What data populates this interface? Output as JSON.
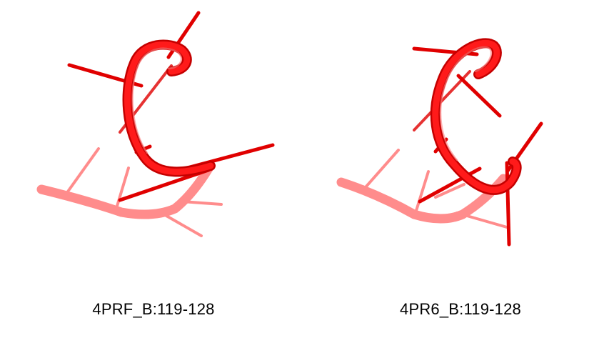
{
  "structures": [
    {
      "label": "4PRF_B:119-128",
      "color": "#ff0000"
    },
    {
      "label": "4PR6_B:119-128",
      "color": "#ff0000"
    }
  ]
}
